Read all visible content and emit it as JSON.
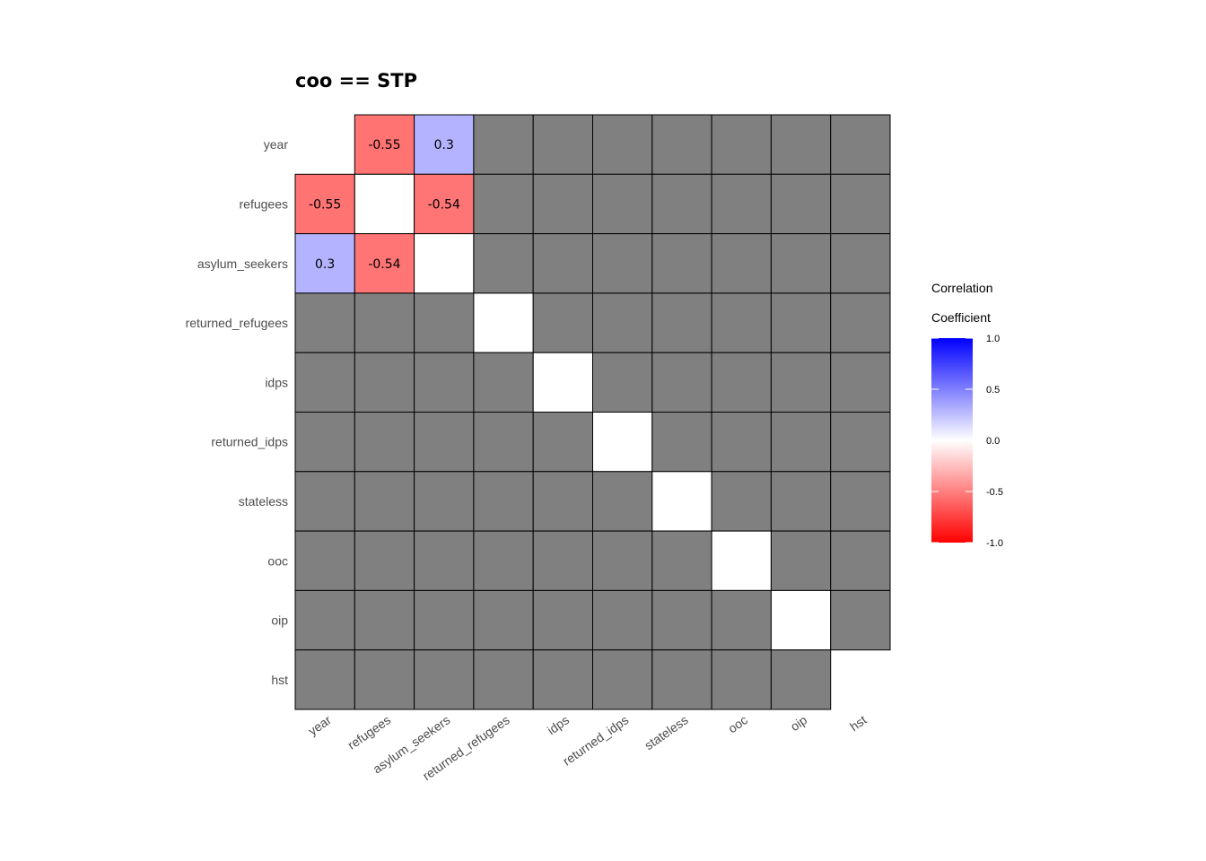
{
  "chart_data": {
    "type": "heatmap",
    "title": "coo == STP",
    "xlabel": "",
    "ylabel": "",
    "variables": [
      "year",
      "refugees",
      "asylum_seekers",
      "returned_refugees",
      "idps",
      "returned_idps",
      "stateless",
      "ooc",
      "oip",
      "hst"
    ],
    "matrix": [
      [
        null,
        -0.55,
        0.3,
        "NA",
        "NA",
        "NA",
        "NA",
        "NA",
        "NA",
        "NA"
      ],
      [
        -0.55,
        null,
        -0.54,
        "NA",
        "NA",
        "NA",
        "NA",
        "NA",
        "NA",
        "NA"
      ],
      [
        0.3,
        -0.54,
        null,
        "NA",
        "NA",
        "NA",
        "NA",
        "NA",
        "NA",
        "NA"
      ],
      [
        "NA",
        "NA",
        "NA",
        null,
        "NA",
        "NA",
        "NA",
        "NA",
        "NA",
        "NA"
      ],
      [
        "NA",
        "NA",
        "NA",
        "NA",
        null,
        "NA",
        "NA",
        "NA",
        "NA",
        "NA"
      ],
      [
        "NA",
        "NA",
        "NA",
        "NA",
        "NA",
        null,
        "NA",
        "NA",
        "NA",
        "NA"
      ],
      [
        "NA",
        "NA",
        "NA",
        "NA",
        "NA",
        "NA",
        null,
        "NA",
        "NA",
        "NA"
      ],
      [
        "NA",
        "NA",
        "NA",
        "NA",
        "NA",
        "NA",
        "NA",
        null,
        "NA",
        "NA"
      ],
      [
        "NA",
        "NA",
        "NA",
        "NA",
        "NA",
        "NA",
        "NA",
        "NA",
        null,
        "NA"
      ],
      [
        "NA",
        "NA",
        "NA",
        "NA",
        "NA",
        "NA",
        "NA",
        "NA",
        "NA",
        null
      ]
    ],
    "legend": {
      "title_lines": [
        "Correlation",
        "Coefficient"
      ],
      "ticks": [
        "1.0",
        "0.5",
        "0.0",
        "-0.5",
        "-1.0"
      ],
      "range": [
        -1,
        1
      ],
      "low_color": "#ff0000",
      "mid_color": "#ffffff",
      "high_color": "#0000ff",
      "placement": "right"
    },
    "colors": {
      "na_fill": "#808080",
      "cell_border": "#000000"
    }
  }
}
